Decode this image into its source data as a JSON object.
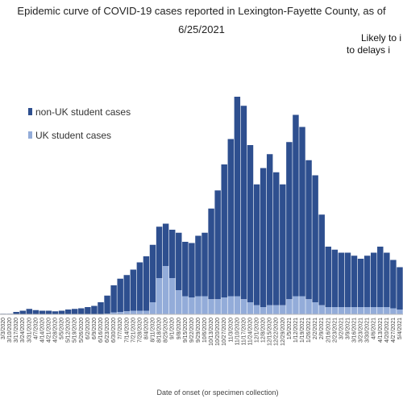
{
  "chart_data": {
    "type": "bar",
    "stacked": true,
    "title_lines": [
      "Epidemic curve of COVID-19 cases reported in Lexington-Fayette County, as of",
      "6/25/2021"
    ],
    "annotation_lines": [
      "Likely to i",
      "to delays i"
    ],
    "xlabel": "Date of onset (or specimen collection)",
    "ylabel": "",
    "grid": false,
    "legend_position": "left",
    "colors": {
      "non_uk": "#2e4f8f",
      "uk": "#93acd9"
    },
    "series": [
      {
        "name": "non-UK student cases",
        "key": "non_uk"
      },
      {
        "name": "UK student cases",
        "key": "uk"
      }
    ],
    "x_tick_labels": [
      "3/3/2020",
      "3/10/2020",
      "3/17/2020",
      "3/24/2020",
      "3/31/2020",
      "4/7/2020",
      "4/14/2020",
      "4/21/2020",
      "4/28/2020",
      "5/5/2020",
      "5/12/2020",
      "5/19/2020",
      "5/26/2020",
      "6/2/2020",
      "6/9/2020",
      "6/16/2020",
      "6/23/2020",
      "6/30/2020",
      "7/7/2020",
      "7/14/2020",
      "7/21/2020",
      "7/28/2020",
      "8/4/2020",
      "8/11/2020",
      "8/18/2020",
      "8/25/2020",
      "9/1/2020",
      "9/8/2020",
      "9/15/2020",
      "9/22/2020",
      "9/29/2020",
      "10/6/2020",
      "10/13/2020",
      "10/20/2020",
      "10/27/2020",
      "11/3/2020",
      "11/10/2020",
      "11/17/2020",
      "11/24/2020",
      "12/1/2020",
      "12/8/2020",
      "12/15/2020",
      "12/22/2020",
      "12/29/2020",
      "1/5/2021",
      "1/12/2021",
      "1/19/2021",
      "1/26/2021",
      "2/2/2021",
      "2/9/2021",
      "2/16/2021",
      "2/23/2021",
      "3/2/2021",
      "3/9/2021",
      "3/16/2021",
      "3/23/2021",
      "3/30/2021",
      "4/6/2021",
      "4/13/2021",
      "4/20/2021",
      "4/27/2021",
      "5/4/2021"
    ],
    "weekly": {
      "non_uk": [
        1,
        1,
        4,
        6,
        9,
        7,
        6,
        6,
        5,
        6,
        8,
        9,
        10,
        12,
        14,
        20,
        30,
        45,
        55,
        60,
        68,
        80,
        90,
        95,
        85,
        70,
        80,
        95,
        90,
        90,
        100,
        105,
        150,
        180,
        220,
        260,
        330,
        320,
        260,
        200,
        230,
        250,
        220,
        200,
        260,
        300,
        280,
        230,
        210,
        150,
        100,
        95,
        90,
        90,
        85,
        80,
        85,
        90,
        100,
        90,
        80,
        70
      ],
      "uk": [
        0,
        0,
        0,
        0,
        0,
        0,
        0,
        0,
        0,
        0,
        0,
        0,
        0,
        0,
        0,
        0,
        1,
        3,
        4,
        5,
        6,
        6,
        6,
        20,
        60,
        80,
        60,
        40,
        30,
        28,
        30,
        30,
        25,
        25,
        28,
        30,
        30,
        25,
        20,
        15,
        12,
        15,
        15,
        15,
        25,
        30,
        30,
        25,
        20,
        15,
        12,
        12,
        12,
        12,
        12,
        12,
        12,
        12,
        12,
        12,
        10,
        8
      ]
    }
  },
  "legend": {
    "non_uk_label": "non-UK student cases",
    "uk_label": "UK student cases"
  }
}
